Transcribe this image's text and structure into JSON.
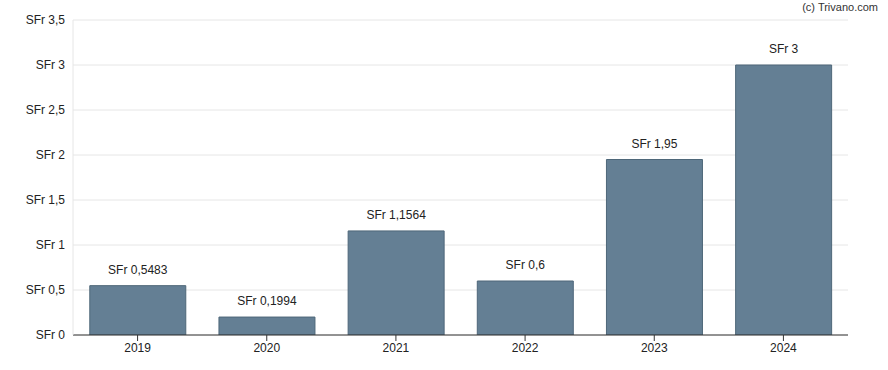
{
  "chart_data": {
    "type": "bar",
    "categories": [
      "2019",
      "2020",
      "2021",
      "2022",
      "2023",
      "2024"
    ],
    "values": [
      0.5483,
      0.1994,
      1.1564,
      0.6,
      1.95,
      3
    ],
    "value_labels": [
      "SFr 0,5483",
      "SFr 0,1994",
      "SFr 1,1564",
      "SFr 0,6",
      "SFr 1,95",
      "SFr 3"
    ],
    "data_labels": true,
    "color": "#647f94",
    "ylim": [
      0,
      3.5
    ],
    "yticks": [
      {
        "value": 0,
        "label": "SFr 0"
      },
      {
        "value": 0.5,
        "label": "SFr 0,5"
      },
      {
        "value": 1,
        "label": "SFr 1"
      },
      {
        "value": 1.5,
        "label": "SFr 1,5"
      },
      {
        "value": 2,
        "label": "SFr 2"
      },
      {
        "value": 2.5,
        "label": "SFr 2,5"
      },
      {
        "value": 3,
        "label": "SFr 3"
      },
      {
        "value": 3.5,
        "label": "SFr 3,5"
      }
    ],
    "grid": true,
    "annotations": [
      "(c) Trivano.com"
    ]
  }
}
